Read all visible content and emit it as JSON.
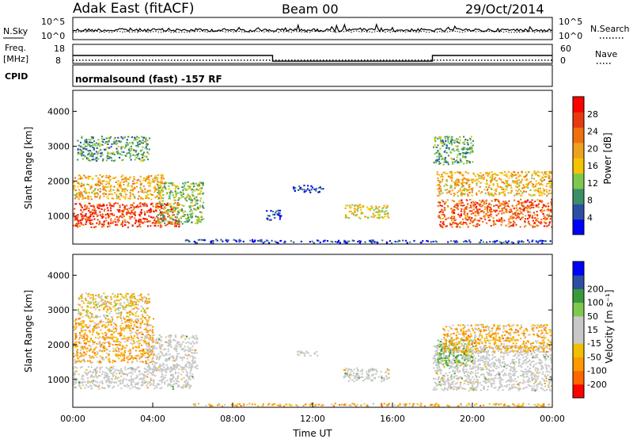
{
  "header": {
    "station": "Adak East (fitACF)",
    "beam": "Beam 00",
    "date": "29/Oct/2014"
  },
  "top_panel": {
    "left_label": "N.Sky",
    "right_label": "N.Search",
    "left_ticks": [
      "10^5",
      "10^0"
    ],
    "right_ticks": [
      "10^5",
      "10^0"
    ]
  },
  "freq_panel": {
    "left_label_line1": "Freq.",
    "left_label_line2": "[MHz]",
    "left_ticks": [
      "18",
      "8"
    ],
    "right_ticks": [
      "60",
      "0"
    ],
    "right_label": "Nave",
    "cpid_label": "CPID",
    "cpid_text": "normalsound (fast) -157 RF",
    "freq_series": [
      {
        "t": 0.0,
        "v": 13
      },
      {
        "t": 10.0,
        "v": 13
      },
      {
        "t": 10.0,
        "v": 10
      },
      {
        "t": 18.0,
        "v": 10
      },
      {
        "t": 18.0,
        "v": 13
      },
      {
        "t": 24.0,
        "v": 13
      }
    ]
  },
  "colors": {
    "power": [
      "#0000ff",
      "#2c4fa3",
      "#3a8f6a",
      "#7ec850",
      "#f5c400",
      "#f0a020",
      "#f07010",
      "#e83a10",
      "#ff0000"
    ],
    "velocity": [
      "#ff0000",
      "#ff6600",
      "#ff9900",
      "#f0c000",
      "#c8c8c8",
      "#c8c8c8",
      "#7ec850",
      "#3a9a3a",
      "#2c4fa3",
      "#0000ff"
    ],
    "ground_scatter": "#c8c8c8"
  },
  "power_colorbar": {
    "label": "Power [dB]",
    "ticks": [
      "4",
      "8",
      "12",
      "16",
      "20",
      "24",
      "28"
    ]
  },
  "velocity_colorbar": {
    "label": "Velocity [m s⁻¹]",
    "ticks": [
      "-200",
      "-100",
      "-50",
      "-15",
      "15",
      "50",
      "100",
      "200"
    ]
  },
  "chart_data": [
    {
      "type": "heatmap",
      "title": "",
      "xlabel": "",
      "ylabel": "Slant Range [km]",
      "xlim_hours": [
        0,
        24
      ],
      "ylim": [
        200,
        4600
      ],
      "yticks": [
        "1000",
        "2000",
        "3000",
        "4000"
      ],
      "variable": "Power [dB]",
      "regions": [
        {
          "t0": 0.0,
          "t1": 5.3,
          "r0": 700,
          "r1": 1400,
          "value": 28
        },
        {
          "t0": 0.0,
          "t1": 4.5,
          "r0": 1500,
          "r1": 2200,
          "value": 20
        },
        {
          "t0": 0.2,
          "t1": 3.8,
          "r0": 2600,
          "r1": 3300,
          "value": 12
        },
        {
          "t0": 4.2,
          "t1": 6.5,
          "r0": 800,
          "r1": 2000,
          "value": 14
        },
        {
          "t0": 5.6,
          "t1": 9.5,
          "r0": 250,
          "r1": 350,
          "value": 6
        },
        {
          "t0": 11.0,
          "t1": 12.5,
          "r0": 1700,
          "r1": 1900,
          "value": 6
        },
        {
          "t0": 9.6,
          "t1": 10.4,
          "r0": 900,
          "r1": 1200,
          "value": 6
        },
        {
          "t0": 13.6,
          "t1": 15.8,
          "r0": 950,
          "r1": 1350,
          "value": 18
        },
        {
          "t0": 18.2,
          "t1": 24.0,
          "r0": 700,
          "r1": 1500,
          "value": 26
        },
        {
          "t0": 18.2,
          "t1": 24.0,
          "r0": 1600,
          "r1": 2300,
          "value": 20
        },
        {
          "t0": 18.0,
          "t1": 20.0,
          "r0": 2500,
          "r1": 3300,
          "value": 12
        },
        {
          "t0": 9.0,
          "t1": 24.0,
          "r0": 250,
          "r1": 330,
          "value": 6
        }
      ]
    },
    {
      "type": "heatmap",
      "title": "",
      "xlabel": "Time UT",
      "ylabel": "Slant Range [km]",
      "xlim_hours": [
        0,
        24
      ],
      "xticks": [
        "00:00",
        "04:00",
        "08:00",
        "12:00",
        "16:00",
        "20:00",
        "00:00"
      ],
      "ylim": [
        200,
        4600
      ],
      "yticks": [
        "1000",
        "2000",
        "3000",
        "4000"
      ],
      "variable": "Velocity [m s^-1]",
      "regions": [
        {
          "t0": 0.0,
          "t1": 6.0,
          "r0": 750,
          "r1": 1400,
          "value": "ground scatter"
        },
        {
          "t0": 3.6,
          "t1": 6.2,
          "r0": 1300,
          "r1": 2300,
          "value": "ground scatter"
        },
        {
          "t0": 0.0,
          "t1": 4.0,
          "r0": 1500,
          "r1": 2800,
          "value": -50
        },
        {
          "t0": 0.2,
          "t1": 3.8,
          "r0": 2800,
          "r1": 3500,
          "value": -30
        },
        {
          "t0": 13.5,
          "t1": 15.8,
          "r0": 950,
          "r1": 1350,
          "value": "ground scatter"
        },
        {
          "t0": 11.2,
          "t1": 12.3,
          "r0": 1700,
          "r1": 1850,
          "value": "ground scatter"
        },
        {
          "t0": 18.0,
          "t1": 24.0,
          "r0": 700,
          "r1": 2000,
          "value": "ground scatter"
        },
        {
          "t0": 18.2,
          "t1": 20.0,
          "r0": 1400,
          "r1": 2200,
          "value": 30
        },
        {
          "t0": 18.5,
          "t1": 24.0,
          "r0": 1800,
          "r1": 2600,
          "value": -50
        },
        {
          "t0": 6.0,
          "t1": 24.0,
          "r0": 250,
          "r1": 330,
          "value": -50
        }
      ]
    }
  ]
}
